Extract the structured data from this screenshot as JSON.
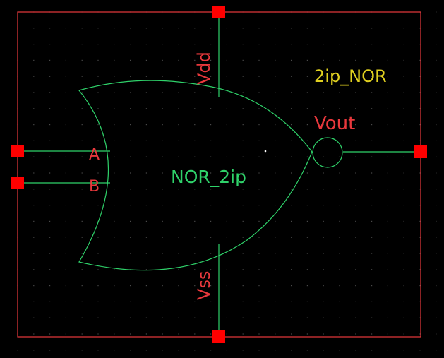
{
  "colors": {
    "background": "#000000",
    "boundary": "#e8383c",
    "pin": "#ff0000",
    "wire": "#2fd26a",
    "pin_label": "#e8383c",
    "instance_label": "#2fd26a",
    "cell_label": "#e0d020",
    "grid_dot": "#4a4a4a"
  },
  "symbol": {
    "cell_name": "2ip_NOR",
    "instance_name": "NOR_2ip",
    "gate_type": "NOR",
    "pins": {
      "a": "A",
      "b": "B",
      "vout": "Vout",
      "vdd": "Vdd",
      "vss": "Vss"
    }
  }
}
